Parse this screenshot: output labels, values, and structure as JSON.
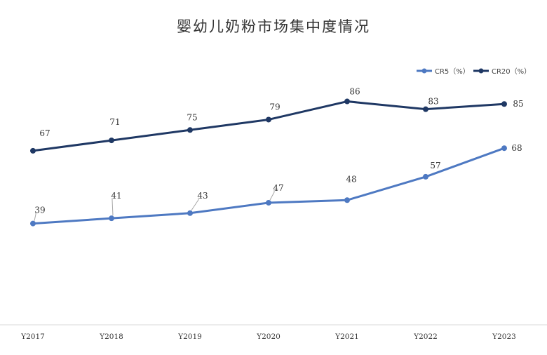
{
  "chart_data": {
    "type": "line",
    "title": "婴幼儿奶粉市场集中度情况",
    "categories": [
      "Y2017",
      "Y2018",
      "Y2019",
      "Y2020",
      "Y2021",
      "Y2022",
      "Y2023"
    ],
    "series": [
      {
        "name": "CR5（%）",
        "color": "#4e79c2",
        "values": [
          39,
          41,
          43,
          47,
          48,
          57,
          68
        ]
      },
      {
        "name": "CR20（%）",
        "color": "#1f3864",
        "values": [
          67,
          71,
          75,
          79,
          86,
          83,
          85
        ]
      }
    ],
    "xlabel": "",
    "ylabel": "",
    "ylim": [
      0,
      90
    ],
    "grid": false,
    "legend_position": "top-right",
    "data_labels": true
  }
}
